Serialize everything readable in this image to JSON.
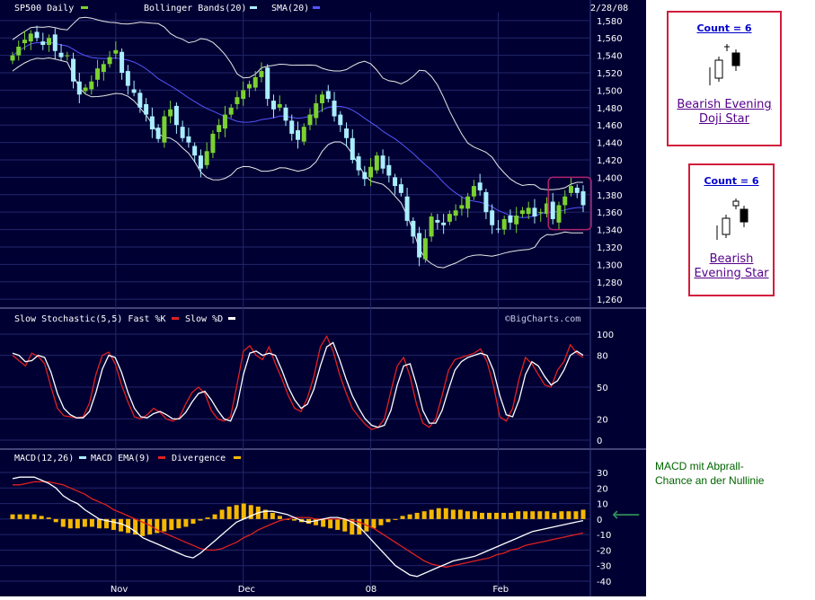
{
  "colors": {
    "panel_bg": "#000033",
    "grid": "#23276a",
    "text": "#ffffff",
    "bull_candle": "#7bd12f",
    "bear_candle": "#aaeeff",
    "sma": "#5555ff",
    "bands": "#e8e8e8",
    "fast_k": "#e02020",
    "slow_d": "#ffffff",
    "divergence": "#f5b800",
    "highlight": "#b0236b",
    "note": "#006400"
  },
  "header": {
    "date": "2/28/08",
    "watermark": "©BigCharts.com"
  },
  "legends": {
    "price": [
      {
        "label": "SP500 Daily",
        "swatch": "#7bd12f"
      },
      {
        "label": "Bollinger Bands(20)",
        "swatch": "#aaeeff"
      },
      {
        "label": "SMA(20)",
        "swatch": "#5555ff"
      }
    ],
    "stoch": [
      {
        "label": "Slow Stochastic(5,5) Fast %K",
        "swatch": "#e02020"
      },
      {
        "label": "Slow %D",
        "swatch": "#aaeeff"
      }
    ],
    "macd": [
      {
        "label": "MACD(12,26)",
        "swatch": "#aaeeff"
      },
      {
        "label": "MACD EMA(9)",
        "swatch": "#e02020"
      },
      {
        "label": "Divergence",
        "swatch": "#f5b800"
      }
    ]
  },
  "x_axis_labels": [
    {
      "label": "Nov",
      "idx": 17
    },
    {
      "label": "Dec",
      "idx": 38
    },
    {
      "label": "08",
      "idx": 59
    },
    {
      "label": "Feb",
      "idx": 80
    }
  ],
  "patterns": [
    {
      "count": "Count = 6",
      "name_line1": "Bearish Evening",
      "name_line2": "Doji Star"
    },
    {
      "count": "Count = 6",
      "name_line1": "Bearish",
      "name_line2": "Evening Star"
    }
  ],
  "note": {
    "line1": "MACD mit Abprall-",
    "line2": "Chance an der Nullinie",
    "arrow": "⟵"
  },
  "chart_data": [
    {
      "type": "candlestick",
      "title": "SP500 Daily",
      "ylim": [
        1255,
        1585
      ],
      "yticks": [
        1260,
        1280,
        1300,
        1320,
        1340,
        1360,
        1380,
        1400,
        1420,
        1440,
        1460,
        1480,
        1500,
        1520,
        1540,
        1560,
        1580
      ],
      "close": [
        1540,
        1550,
        1558,
        1565,
        1560,
        1552,
        1560,
        1545,
        1538,
        1540,
        1510,
        1495,
        1503,
        1510,
        1525,
        1530,
        1538,
        1546,
        1520,
        1505,
        1497,
        1480,
        1472,
        1455,
        1444,
        1470,
        1478,
        1460,
        1445,
        1440,
        1425,
        1410,
        1430,
        1450,
        1460,
        1472,
        1480,
        1492,
        1500,
        1507,
        1515,
        1522,
        1490,
        1478,
        1484,
        1465,
        1450,
        1443,
        1458,
        1472,
        1485,
        1495,
        1490,
        1470,
        1460,
        1445,
        1420,
        1408,
        1398,
        1412,
        1425,
        1410,
        1402,
        1390,
        1382,
        1350,
        1332,
        1308,
        1330,
        1355,
        1348,
        1345,
        1358,
        1362,
        1368,
        1378,
        1390,
        1385,
        1360,
        1345,
        1340,
        1352,
        1348,
        1356,
        1362,
        1365,
        1355,
        1360,
        1370,
        1352,
        1368,
        1378,
        1390,
        1382,
        1368
      ]
    },
    {
      "type": "line",
      "title": "Slow Stochastic(5,5)",
      "ylim": [
        0,
        100
      ],
      "yticks": [
        0,
        20,
        50,
        80,
        100
      ],
      "series": [
        {
          "name": "Fast %K",
          "values": [
            80,
            75,
            70,
            82,
            79,
            72,
            50,
            30,
            23,
            22,
            21,
            22,
            35,
            62,
            80,
            83,
            72,
            52,
            36,
            22,
            20,
            24,
            30,
            26,
            20,
            18,
            21,
            34,
            45,
            50,
            44,
            28,
            20,
            18,
            22,
            52,
            84,
            89,
            80,
            76,
            88,
            72,
            58,
            42,
            30,
            27,
            40,
            60,
            88,
            98,
            84,
            62,
            45,
            30,
            22,
            15,
            10,
            12,
            20,
            46,
            70,
            78,
            60,
            34,
            16,
            12,
            20,
            42,
            66,
            76,
            78,
            80,
            82,
            86,
            74,
            52,
            22,
            18,
            30,
            58,
            78,
            72,
            62,
            52,
            50,
            66,
            74,
            90,
            82,
            78
          ]
        },
        {
          "name": "Slow %D",
          "values": [
            82,
            80,
            74,
            75,
            80,
            78,
            64,
            44,
            30,
            24,
            21,
            21,
            27,
            45,
            67,
            80,
            78,
            64,
            45,
            30,
            22,
            21,
            25,
            27,
            24,
            20,
            20,
            26,
            36,
            44,
            46,
            38,
            28,
            20,
            18,
            32,
            62,
            82,
            84,
            80,
            82,
            80,
            66,
            50,
            38,
            30,
            34,
            48,
            70,
            88,
            92,
            76,
            58,
            42,
            30,
            20,
            14,
            12,
            14,
            28,
            52,
            70,
            72,
            52,
            28,
            16,
            16,
            28,
            48,
            66,
            74,
            78,
            80,
            82,
            80,
            66,
            42,
            24,
            22,
            38,
            62,
            74,
            70,
            60,
            52,
            56,
            66,
            80,
            84,
            80
          ]
        }
      ]
    },
    {
      "type": "line",
      "title": "MACD(12,26)",
      "ylim": [
        -40,
        30
      ],
      "yticks": [
        -40,
        -30,
        -20,
        -10,
        0,
        10,
        20,
        30
      ],
      "series": [
        {
          "name": "MACD(12,26)",
          "values": [
            26,
            27,
            27,
            27,
            25,
            23,
            20,
            15,
            12,
            10,
            6,
            3,
            0,
            -1,
            -2,
            -3,
            -5,
            -8,
            -12,
            -14,
            -16,
            -18,
            -20,
            -22,
            -24,
            -25,
            -22,
            -18,
            -14,
            -10,
            -6,
            -2,
            0,
            2,
            4,
            5,
            5,
            4,
            3,
            1,
            -1,
            -2,
            -1,
            0,
            1,
            1,
            0,
            -2,
            -5,
            -10,
            -15,
            -20,
            -25,
            -30,
            -33,
            -36,
            -37,
            -35,
            -33,
            -31,
            -29,
            -27,
            -26,
            -25,
            -24,
            -22,
            -20,
            -18,
            -16,
            -14,
            -12,
            -10,
            -8,
            -7,
            -6,
            -5,
            -4,
            -3,
            -2,
            -1
          ]
        },
        {
          "name": "MACD EMA(9)",
          "values": [
            22,
            22,
            23,
            24,
            24,
            24,
            23,
            22,
            20,
            18,
            16,
            13,
            11,
            9,
            6,
            4,
            2,
            0,
            -2,
            -4,
            -7,
            -9,
            -11,
            -13,
            -15,
            -17,
            -19,
            -20,
            -20,
            -19,
            -17,
            -15,
            -12,
            -10,
            -7,
            -5,
            -3,
            -1,
            0,
            1,
            1,
            1,
            0,
            0,
            0,
            0,
            0,
            -1,
            -2,
            -4,
            -6,
            -9,
            -12,
            -15,
            -18,
            -21,
            -24,
            -27,
            -29,
            -30,
            -31,
            -30,
            -29,
            -28,
            -27,
            -26,
            -25,
            -23,
            -22,
            -20,
            -19,
            -17,
            -16,
            -15,
            -14,
            -13,
            -12,
            -11,
            -10,
            -9
          ]
        },
        {
          "name": "Divergence",
          "values": [
            3,
            3,
            3,
            3,
            2,
            1,
            -2,
            -5,
            -6,
            -6,
            -5,
            -5,
            -6,
            -6,
            -7,
            -8,
            -9,
            -10,
            -11,
            -10,
            -9,
            -8,
            -7,
            -6,
            -5,
            -3,
            -1,
            1,
            3,
            6,
            8,
            9,
            10,
            9,
            8,
            6,
            4,
            2,
            0,
            -1,
            -2,
            -3,
            -4,
            -5,
            -6,
            -7,
            -8,
            -10,
            -10,
            -8,
            -6,
            -4,
            -2,
            0,
            2,
            3,
            4,
            5,
            6,
            7,
            7,
            6,
            6,
            5,
            5,
            4,
            4,
            4,
            4,
            4,
            5,
            5,
            5,
            5,
            5,
            4,
            5,
            5,
            5,
            6
          ]
        }
      ]
    }
  ]
}
